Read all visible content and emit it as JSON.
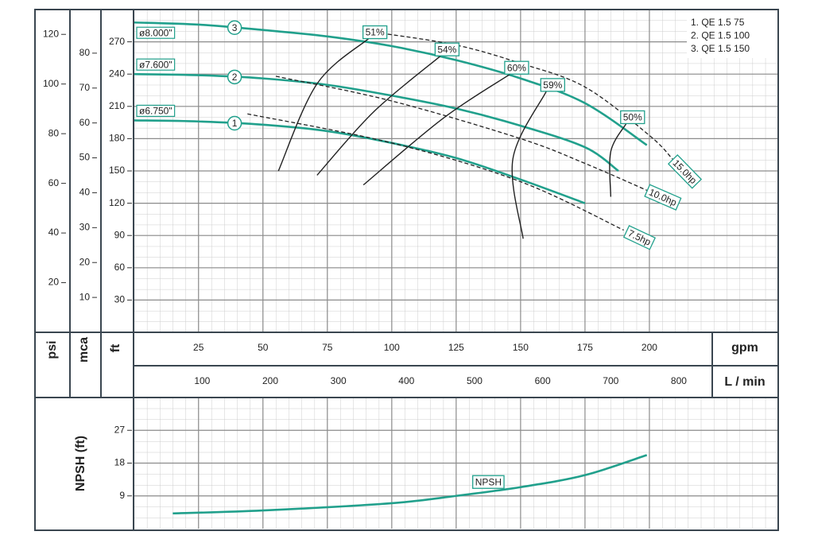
{
  "chart_data": [
    {
      "type": "line",
      "xlabel": "gpm",
      "xlim": [
        0,
        250
      ],
      "xticks": [
        25,
        50,
        75,
        100,
        125,
        150,
        175,
        200
      ],
      "x2label": "L / min",
      "x2lim": [
        0,
        946
      ],
      "x2ticks": [
        100,
        200,
        300,
        400,
        500,
        600,
        700,
        800
      ],
      "ylabel": "ft",
      "ylim": [
        0,
        300
      ],
      "yticks": [
        30,
        60,
        90,
        120,
        150,
        180,
        210,
        240,
        270
      ],
      "y2label": "mca",
      "y2lim": [
        0,
        92.5
      ],
      "y2ticks": [
        10,
        20,
        30,
        40,
        50,
        60,
        70,
        80
      ],
      "y3label": "psi",
      "y3lim": [
        0,
        130
      ],
      "y3ticks": [
        20,
        40,
        60,
        80,
        100,
        120
      ],
      "grid": true,
      "legend": "upper right",
      "series": [
        {
          "name": "1. QE 1.5 75",
          "label": "ø6.750\"",
          "marker_label": "1",
          "color": "#21a08c",
          "x": [
            0,
            25,
            50,
            75,
            100,
            125,
            150,
            175
          ],
          "values": [
            197,
            196,
            193,
            187,
            176,
            162,
            142,
            120
          ]
        },
        {
          "name": "2. QE 1.5 100",
          "label": "ø7.600\"",
          "marker_label": "2",
          "color": "#21a08c",
          "x": [
            0,
            25,
            50,
            75,
            100,
            125,
            150,
            175,
            188
          ],
          "values": [
            240,
            239,
            236,
            230,
            220,
            208,
            192,
            172,
            150
          ]
        },
        {
          "name": "3. QE 1.5 150",
          "label": "ø8.000\"",
          "marker_label": "3",
          "color": "#21a08c",
          "x": [
            0,
            25,
            50,
            75,
            100,
            125,
            150,
            175,
            199
          ],
          "values": [
            288,
            286,
            281,
            275,
            266,
            253,
            236,
            213,
            174
          ]
        }
      ],
      "power_lines": [
        {
          "name": "7.5hp",
          "color": "#222222",
          "x": [
            44,
            100,
            150,
            190
          ],
          "values": [
            203,
            176,
            140,
            95
          ]
        },
        {
          "name": "10.0hp",
          "color": "#222222",
          "x": [
            55,
            100,
            150,
            175,
            199
          ],
          "values": [
            238,
            215,
            180,
            157,
            132
          ]
        },
        {
          "name": "15.0hp",
          "color": "#222222",
          "x": [
            96,
            125,
            150,
            175,
            200,
            209
          ],
          "values": [
            278,
            267,
            250,
            228,
            183,
            161
          ]
        }
      ],
      "efficiency_curves": [
        {
          "name": "51%",
          "color": "#222222",
          "x": [
            56,
            71,
            91
          ],
          "values": [
            150,
            231,
            273
          ]
        },
        {
          "name": "54%",
          "color": "#222222",
          "x": [
            71,
            93,
            119
          ],
          "values": [
            146,
            205,
            257
          ]
        },
        {
          "name": "60%",
          "color": "#222222",
          "x": [
            89,
            120,
            146
          ],
          "values": [
            137,
            199,
            240
          ]
        },
        {
          "name": "59%",
          "color": "#222222",
          "x": [
            151,
            147,
            160
          ],
          "values": [
            87,
            161,
            224
          ]
        },
        {
          "name": "50%",
          "color": "#222222",
          "x": [
            185,
            185,
            191
          ],
          "values": [
            126,
            168,
            194
          ]
        }
      ]
    },
    {
      "type": "line",
      "ylabel": "NPSH (ft)",
      "xlim": [
        0,
        250
      ],
      "ylim": [
        0,
        36
      ],
      "yticks": [
        9,
        18,
        27
      ],
      "grid": true,
      "series": [
        {
          "name": "NPSH",
          "color": "#21a08c",
          "x": [
            15,
            50,
            100,
            125,
            150,
            175,
            199
          ],
          "values": [
            4.2,
            5.0,
            7.0,
            9.0,
            11.4,
            14.7,
            20.2
          ]
        }
      ]
    }
  ]
}
